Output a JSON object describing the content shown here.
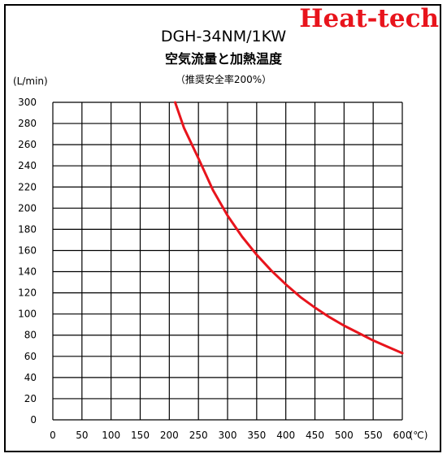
{
  "brand": {
    "text": "Heat-tech",
    "color": "#e8141c"
  },
  "chart_data": {
    "type": "line",
    "title": "DGH-34NM/1KW",
    "subtitle": "空気流量と加熱温度",
    "note": "（推奨安全率200%）",
    "ylabel": "(L/min)",
    "xlabel": "(℃)",
    "xlim": [
      0,
      600
    ],
    "ylim": [
      0,
      300
    ],
    "x_ticks": [
      0,
      50,
      100,
      150,
      200,
      250,
      300,
      350,
      400,
      450,
      500,
      550,
      600
    ],
    "y_ticks": [
      0,
      20,
      40,
      60,
      80,
      100,
      120,
      140,
      160,
      180,
      200,
      220,
      240,
      260,
      280,
      300
    ],
    "grid": true,
    "series": [
      {
        "color": "#e8141c",
        "x": [
          210,
          225,
          250,
          275,
          300,
          325,
          350,
          375,
          400,
          425,
          450,
          475,
          500,
          525,
          550,
          575,
          600
        ],
        "y": [
          300,
          276,
          247,
          217,
          193,
          173,
          156,
          141,
          128,
          116,
          106,
          97,
          89,
          82,
          75,
          69,
          63
        ]
      }
    ]
  }
}
